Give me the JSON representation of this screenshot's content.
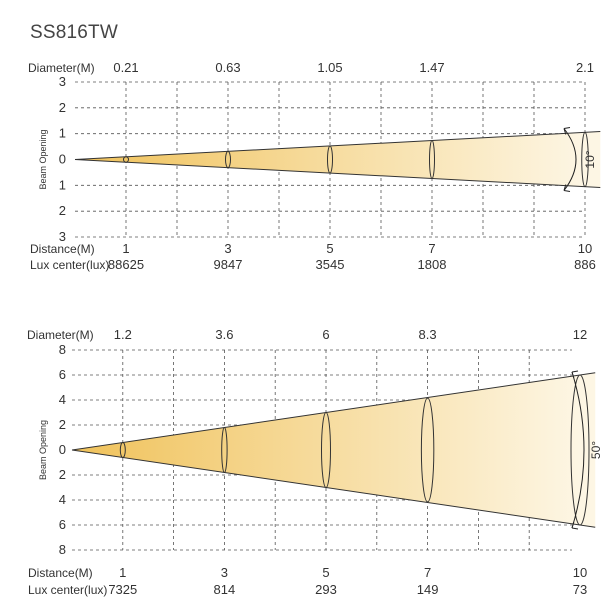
{
  "page_title": "SS816TW",
  "chart_data": [
    {
      "type": "beam-angle",
      "title": "SS816TW",
      "beam_angle_label": "10°",
      "ylabel": "Beam Opening",
      "diameter_label": "Diameter(M)",
      "distance_label": "Distance(M)",
      "lux_label": "Lux center(lux)",
      "ylim": [
        -3,
        3
      ],
      "y_ticks": [
        "3",
        "2",
        "1",
        "0",
        "1",
        "2",
        "3"
      ],
      "x_range": [
        0,
        10
      ],
      "distances": [
        1,
        3,
        5,
        7,
        10
      ],
      "distance_labels": [
        "1",
        "3",
        "5",
        "7",
        "10"
      ],
      "diameters": [
        0.21,
        0.63,
        1.05,
        1.47,
        2.1
      ],
      "diameter_labels": [
        "0.21",
        "0.63",
        "1.05",
        "1.47",
        "2.1"
      ],
      "lux_center": [
        88625,
        9847,
        3545,
        1808,
        886
      ],
      "lux_labels": [
        "88625",
        "9847",
        "3545",
        "1808",
        "886"
      ],
      "grid": true,
      "colors": {
        "beam_near": "#f0c25a",
        "beam_far": "#fdf6e4"
      }
    },
    {
      "type": "beam-angle",
      "beam_angle_label": "50°",
      "ylabel": "Beam Opening",
      "diameter_label": "Diameter(M)",
      "distance_label": "Distance(M)",
      "lux_label": "Lux center(lux)",
      "ylim": [
        -8,
        8
      ],
      "y_ticks": [
        "8",
        "6",
        "4",
        "2",
        "0",
        "2",
        "4",
        "6",
        "8"
      ],
      "x_range": [
        0,
        10
      ],
      "distances": [
        1,
        3,
        5,
        7,
        10
      ],
      "distance_labels": [
        "1",
        "3",
        "5",
        "7",
        "10"
      ],
      "diameters": [
        1.2,
        3.6,
        6,
        8.3,
        12
      ],
      "diameter_labels": [
        "1.2",
        "3.6",
        "6",
        "8.3",
        "12"
      ],
      "lux_center": [
        7325,
        814,
        293,
        149,
        73
      ],
      "lux_labels": [
        "7325",
        "814",
        "293",
        "149",
        "73"
      ],
      "grid": true,
      "colors": {
        "beam_near": "#f0c25a",
        "beam_far": "#fdf6e4"
      }
    }
  ]
}
